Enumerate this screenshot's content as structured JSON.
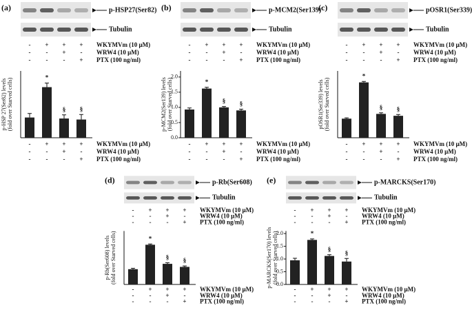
{
  "chart_data": [
    {
      "type": "bar",
      "panel": "(a)",
      "blot_label": "p-HSP27(Ser82)",
      "control_label": "Tubulin",
      "ylabel": [
        "p-HSP 27(Ser82) levels",
        "(fold over Starved cells)"
      ],
      "treatments": [
        {
          "name": "WKYMVm (10 μM)",
          "signs": [
            "-",
            "+",
            "+",
            "+"
          ]
        },
        {
          "name": "WRW4 (10 μM)",
          "signs": [
            "-",
            "-",
            "+",
            "-"
          ]
        },
        {
          "name": "PTX (100 ng/ml)",
          "signs": [
            "-",
            "-",
            "-",
            "+"
          ]
        }
      ],
      "values": [
        1.0,
        2.5,
        0.95,
        0.9
      ],
      "errors": [
        0.2,
        0.2,
        0.18,
        0.25
      ],
      "annotations": [
        null,
        "*",
        "§",
        "§"
      ],
      "ylim": [
        0,
        3.3
      ],
      "yticks": [],
      "color": "#222222"
    },
    {
      "type": "bar",
      "panel": "(b)",
      "blot_label": "p-MCM2(Ser139)",
      "control_label": "Tubulin",
      "ylabel": [
        "p-MCM2(Ser139) levels",
        "(fold over Starved cells)"
      ],
      "treatments": [
        {
          "name": "WKYMVm (10 μM)",
          "signs": [
            "-",
            "+",
            "+",
            "+"
          ]
        },
        {
          "name": "WRW4 (10 μM)",
          "signs": [
            "-",
            "-",
            "+",
            "-"
          ]
        },
        {
          "name": "PTX (100 ng/ml)",
          "signs": [
            "-",
            "-",
            "-",
            "+"
          ]
        }
      ],
      "values": [
        0.93,
        1.62,
        1.0,
        0.9
      ],
      "errors": [
        0.05,
        0.04,
        0.03,
        0.04
      ],
      "annotations": [
        null,
        "*",
        "§",
        "§"
      ],
      "ylim": [
        0,
        2.2
      ],
      "yticks": [
        {
          "value": 0,
          "label": "0.0"
        },
        0.5,
        {
          "value": 1,
          "label": "1.0"
        },
        1.5,
        {
          "value": 2,
          "label": "2.0"
        }
      ],
      "color": "#222222"
    },
    {
      "type": "bar",
      "panel": "(c)",
      "blot_label": "pOSR1(Ser339)",
      "control_label": "Tubulin",
      "ylabel": [
        "pOSR1(Ser339) levels",
        "(fold over Starved cells)"
      ],
      "treatments": [
        {
          "name": "WKYMVm (10 μM)",
          "signs": [
            "-",
            "+",
            "+",
            "+"
          ]
        },
        {
          "name": "WRW4 (10 μM)",
          "signs": [
            "-",
            "-",
            "+",
            "-"
          ]
        },
        {
          "name": "PTX (100 ng/ml)",
          "signs": [
            "-",
            "-",
            "-",
            "+"
          ]
        }
      ],
      "values": [
        1.0,
        2.9,
        1.25,
        1.15
      ],
      "errors": [
        0.04,
        0.05,
        0.06,
        0.07
      ],
      "annotations": [
        null,
        "*",
        "§",
        "§"
      ],
      "ylim": [
        0,
        3.5
      ],
      "yticks": [],
      "color": "#222222"
    },
    {
      "type": "bar",
      "panel": "(d)",
      "blot_label": "p-Rb(Ser608)",
      "control_label": "Tubulin",
      "ylabel": [
        "p-Rb(Ser608) levels",
        "(fold over Starved cells)"
      ],
      "treatments": [
        {
          "name": "WKYMVm (10 μM)",
          "signs": [
            "-",
            "+",
            "+",
            "+"
          ]
        },
        {
          "name": "WRW4 (10 μM)",
          "signs": [
            "-",
            "-",
            "+",
            "-"
          ]
        },
        {
          "name": "PTX (100 ng/ml)",
          "signs": [
            "-",
            "-",
            "-",
            "+"
          ]
        }
      ],
      "values": [
        1.0,
        2.6,
        1.35,
        1.15
      ],
      "errors": [
        0.06,
        0.05,
        0.07,
        0.06
      ],
      "annotations": [
        null,
        "*",
        "§",
        "§"
      ],
      "ylim": [
        0,
        3.5
      ],
      "yticks": [],
      "color": "#222222"
    },
    {
      "type": "bar",
      "panel": "(e)",
      "blot_label": "p-MARCKS(Ser170)",
      "control_label": "Tubulin",
      "ylabel": [
        "p-MARCKS(Ser170) levels",
        "(fold over Starved cells)"
      ],
      "treatments": [
        {
          "name": "WKYMVm (10 μM)",
          "signs": [
            "-",
            "+",
            "+",
            "+"
          ]
        },
        {
          "name": "WRW4 (10 μM)",
          "signs": [
            "-",
            "-",
            "+",
            "-"
          ]
        },
        {
          "name": "PTX (100 ng/ml)",
          "signs": [
            "-",
            "-",
            "-",
            "+"
          ]
        }
      ],
      "values": [
        0.95,
        1.75,
        1.12,
        0.9
      ],
      "errors": [
        0.08,
        0.04,
        0.05,
        0.12
      ],
      "annotations": [
        null,
        "*",
        "§",
        "§"
      ],
      "ylim": [
        0,
        2.1
      ],
      "yticks": [
        {
          "value": 0,
          "label": "0.0"
        },
        0.5,
        {
          "value": 1,
          "label": "1.0"
        },
        1.5,
        {
          "value": 2,
          "label": "2.0"
        }
      ],
      "color": "#222222"
    }
  ]
}
